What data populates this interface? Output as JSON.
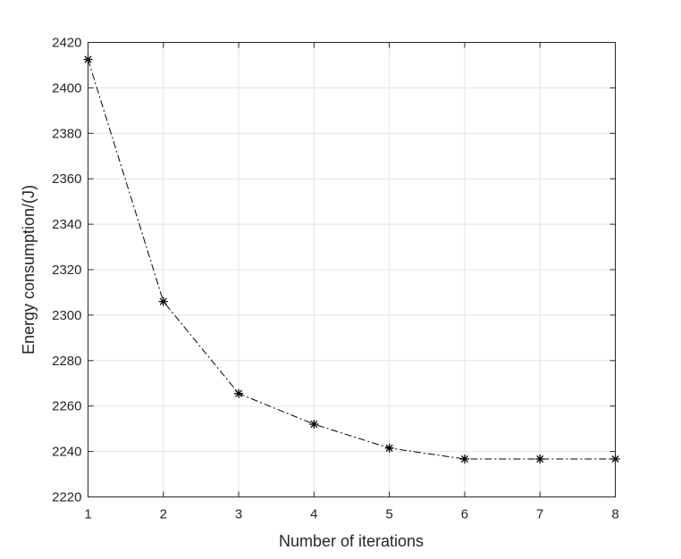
{
  "chart_data": {
    "type": "line",
    "title": "",
    "xlabel": "Number of iterations",
    "ylabel": "Energy consumption/(J)",
    "xlim": [
      1,
      8
    ],
    "ylim": [
      2220,
      2420
    ],
    "xticks": [
      1,
      2,
      3,
      4,
      5,
      6,
      7,
      8
    ],
    "yticks": [
      2220,
      2240,
      2260,
      2280,
      2300,
      2320,
      2340,
      2360,
      2380,
      2400,
      2420
    ],
    "grid": true,
    "legend": "none",
    "series": [
      {
        "x": [
          1,
          2,
          3,
          4,
          5,
          6,
          7,
          8
        ],
        "values": [
          2412.5,
          2306,
          2265.5,
          2252,
          2241.5,
          2236.7,
          2236.7,
          2236.7
        ],
        "color": "#000000",
        "line_style": "dash-dot",
        "marker": "asterisk"
      }
    ]
  }
}
